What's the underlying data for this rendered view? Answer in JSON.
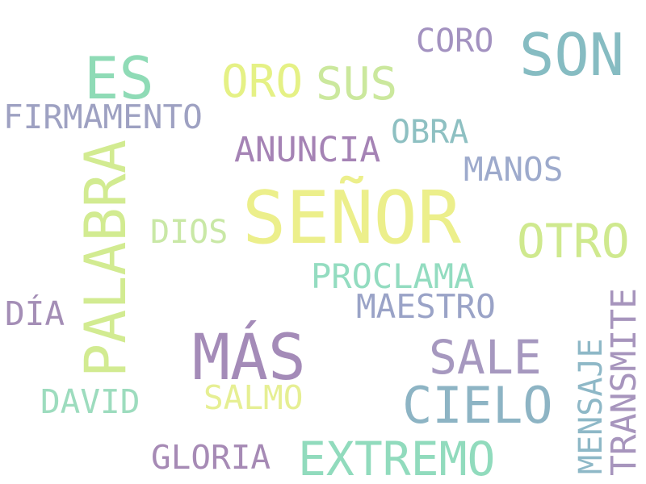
{
  "words": [
    {
      "key": "senor",
      "text": "SEÑOR",
      "color": "#ecef8b"
    },
    {
      "key": "son",
      "text": "SON",
      "color": "#86bcc2"
    },
    {
      "key": "es",
      "text": "ES",
      "color": "#8fdbb6"
    },
    {
      "key": "mas",
      "text": "MÁS",
      "color": "#a48bb8"
    },
    {
      "key": "palabra",
      "text": "PALABRA",
      "color": "#d2eb91"
    },
    {
      "key": "cielo",
      "text": "CIELO",
      "color": "#8db4c4"
    },
    {
      "key": "extremo",
      "text": "EXTREMO",
      "color": "#91dbbd"
    },
    {
      "key": "sale",
      "text": "SALE",
      "color": "#a698bf"
    },
    {
      "key": "otro",
      "text": "OTRO",
      "color": "#cfe98e"
    },
    {
      "key": "oro",
      "text": "ORO",
      "color": "#e5f185"
    },
    {
      "key": "sus",
      "text": "SUS",
      "color": "#cbe89d"
    },
    {
      "key": "transmite",
      "text": "TRANSMITE",
      "color": "#a795bd"
    },
    {
      "key": "anuncia",
      "text": "ANUNCIA",
      "color": "#a583b5"
    },
    {
      "key": "firmamento",
      "text": "FIRMAMENTO",
      "color": "#9ea1c2"
    },
    {
      "key": "proclama",
      "text": "PROCLAMA",
      "color": "#93dcc0"
    },
    {
      "key": "maestro",
      "text": "MAESTRO",
      "color": "#9aa3c7"
    },
    {
      "key": "mensaje",
      "text": "MENSAJE",
      "color": "#8eb8c7"
    },
    {
      "key": "coro",
      "text": "CORO",
      "color": "#a392c0"
    },
    {
      "key": "obra",
      "text": "OBRA",
      "color": "#8ec0c2"
    },
    {
      "key": "manos",
      "text": "MANOS",
      "color": "#9daacc"
    },
    {
      "key": "dios",
      "text": "DIOS",
      "color": "#c9e8a6"
    },
    {
      "key": "dia",
      "text": "DÍA",
      "color": "#a48eb6"
    },
    {
      "key": "david",
      "text": "DAVID",
      "color": "#9ddcbe"
    },
    {
      "key": "salmo",
      "text": "SALMO",
      "color": "#e6ef93"
    },
    {
      "key": "gloria",
      "text": "GLORIA",
      "color": "#a68ab5"
    }
  ]
}
